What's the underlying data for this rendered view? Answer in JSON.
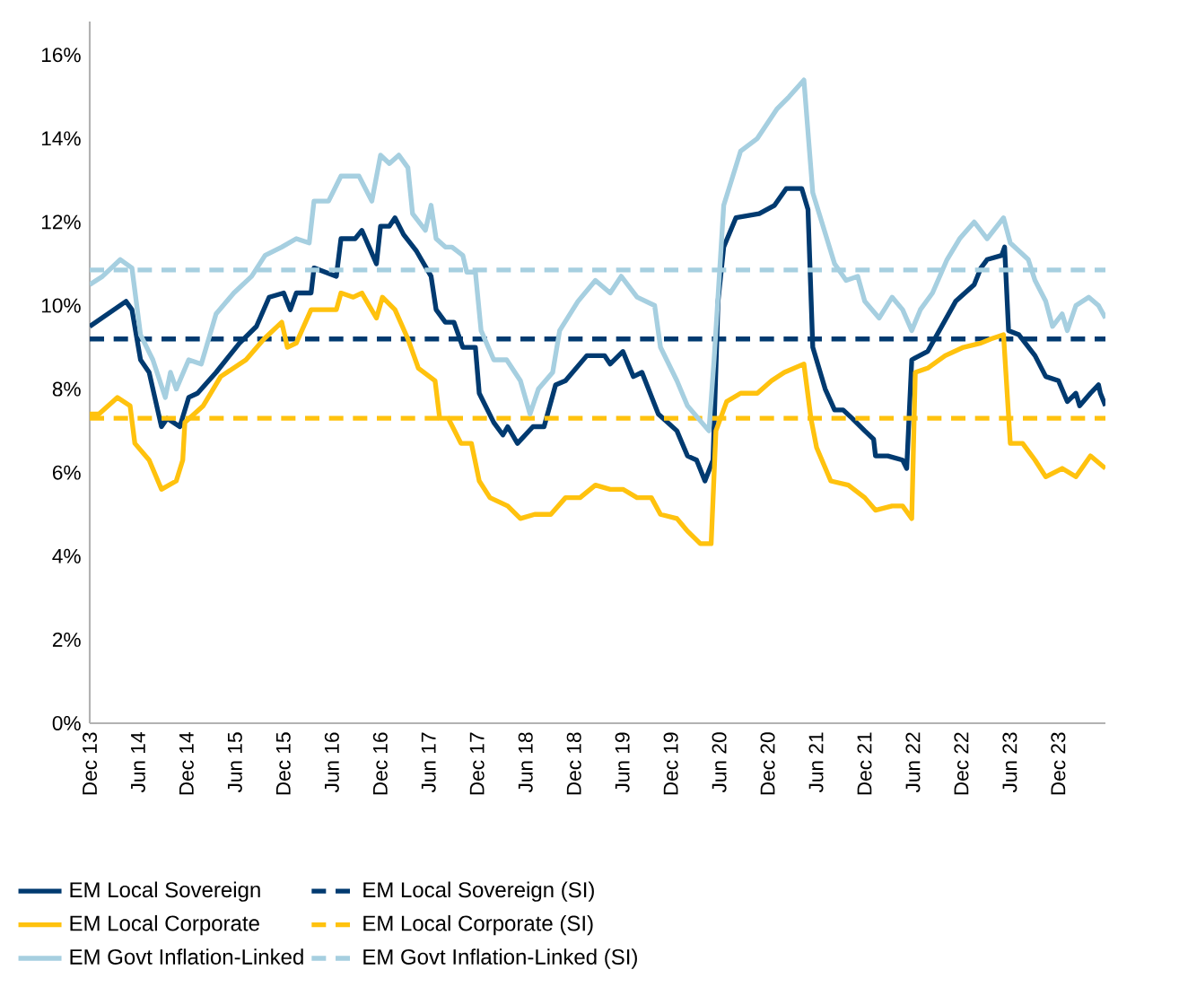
{
  "chart_data": {
    "type": "line",
    "xlim": [
      "2013-12",
      "2024-05-27"
    ],
    "ylim": [
      0,
      16.8
    ],
    "xticks": [
      {
        "value": "2013-12",
        "label": "Dec 13"
      },
      {
        "value": "2014-06",
        "label": "Jun 14"
      },
      {
        "value": "2014-12",
        "label": "Dec 14"
      },
      {
        "value": "2015-06",
        "label": "Jun 15"
      },
      {
        "value": "2015-12",
        "label": "Dec 15"
      },
      {
        "value": "2016-06",
        "label": "Jun 16"
      },
      {
        "value": "2016-12",
        "label": "Dec 16"
      },
      {
        "value": "2017-06",
        "label": "Jun 17"
      },
      {
        "value": "2017-12",
        "label": "Dec 17"
      },
      {
        "value": "2018-06",
        "label": "Jun 18"
      },
      {
        "value": "2018-12",
        "label": "Dec 18"
      },
      {
        "value": "2019-06",
        "label": "Jun 19"
      },
      {
        "value": "2019-12",
        "label": "Dec 19"
      },
      {
        "value": "2020-06",
        "label": "Jun 20"
      },
      {
        "value": "2020-12",
        "label": "Dec 20"
      },
      {
        "value": "2021-06",
        "label": "Jun 21"
      },
      {
        "value": "2021-12",
        "label": "Dec 21"
      },
      {
        "value": "2022-06",
        "label": "Jun 22"
      },
      {
        "value": "2022-12",
        "label": "Dec 22"
      },
      {
        "value": "2023-06",
        "label": "Jun 23"
      },
      {
        "value": "2023-12",
        "label": "Dec 23"
      }
    ],
    "yticks": [
      {
        "value": 0,
        "label": "0%"
      },
      {
        "value": 2,
        "label": "2%"
      },
      {
        "value": 4,
        "label": "4%"
      },
      {
        "value": 6,
        "label": "6%"
      },
      {
        "value": 8,
        "label": "8%"
      },
      {
        "value": 10,
        "label": "10%"
      },
      {
        "value": 12,
        "label": "12%"
      },
      {
        "value": 14,
        "label": "14%"
      },
      {
        "value": 16,
        "label": "16%"
      }
    ],
    "grid": false,
    "legend": "bottom",
    "series": [
      {
        "name": "EM Local Sovereign",
        "color": "#003a70",
        "line_style": "solid",
        "x": [
          "2013-12",
          "2014-04-16",
          "2014-05-08",
          "2014-06-10",
          "2014-07-12",
          "2014-08-28",
          "2014-09-19",
          "2014-11-06",
          "2014-12-09",
          "2015-01-12",
          "2015-03-21",
          "2015-06-18",
          "2015-08-21",
          "2015-10-08",
          "2015-12-02",
          "2015-12-27",
          "2016-01-19",
          "2016-03-14",
          "2016-03-25",
          "2016-06-18",
          "2016-07-05",
          "2016-08-28",
          "2016-09-23",
          "2016-11-17",
          "2016-12-02",
          "2017-01-05",
          "2017-01-26",
          "2017-02-28",
          "2017-04-16",
          "2017-06-10",
          "2017-06-29",
          "2017-08-03",
          "2017-09-05",
          "2017-10-08",
          "2017-11-25",
          "2017-12-09",
          "2018-02-03",
          "2018-03-07",
          "2018-03-25",
          "2018-05-01",
          "2018-06-29",
          "2018-08-10",
          "2018-09-23",
          "2018-10-30",
          "2019-01-19",
          "2019-03-25",
          "2019-04-16",
          "2019-06-03",
          "2019-07-12",
          "2019-08-14",
          "2019-10-15",
          "2019-12-24",
          "2020-02-03",
          "2020-03-07",
          "2020-04-08",
          "2020-05-08",
          "2020-05-27",
          "2020-06-18",
          "2020-08-03",
          "2020-10-30",
          "2020-12-27",
          "2021-02-10",
          "2021-04-08",
          "2021-05-01",
          "2021-05-19",
          "2021-07-05",
          "2021-08-10",
          "2021-09-12",
          "2021-10-15",
          "2021-12-02",
          "2022-01-05",
          "2022-01-12",
          "2022-02-28",
          "2022-04-23",
          "2022-05-08",
          "2022-05-27",
          "2022-07-26",
          "2022-11-10",
          "2023-01-19",
          "2023-02-14",
          "2023-03-07",
          "2023-05-01",
          "2023-05-12",
          "2023-05-27",
          "2023-07-05",
          "2023-09-05",
          "2023-10-15",
          "2023-12-02",
          "2024-01-05",
          "2024-02-07",
          "2024-02-21",
          "2024-04-01",
          "2024-05-01",
          "2024-05-08",
          "2024-05-27"
        ],
        "values": [
          9.5,
          10.1,
          9.9,
          8.7,
          8.4,
          7.1,
          7.3,
          7.1,
          7.8,
          7.9,
          8.4,
          9.1,
          9.5,
          10.2,
          10.3,
          9.9,
          10.3,
          10.3,
          10.9,
          10.7,
          11.6,
          11.6,
          11.8,
          11.0,
          11.9,
          11.9,
          12.1,
          11.7,
          11.3,
          10.7,
          9.9,
          9.6,
          9.6,
          9.0,
          9.0,
          7.9,
          7.2,
          6.9,
          7.1,
          6.7,
          7.1,
          7.1,
          8.1,
          8.2,
          8.8,
          8.8,
          8.6,
          8.9,
          8.3,
          8.4,
          7.4,
          7.0,
          6.4,
          6.3,
          5.8,
          6.3,
          10.1,
          11.4,
          12.1,
          12.2,
          12.4,
          12.8,
          12.8,
          12.3,
          9.0,
          8.0,
          7.5,
          7.5,
          7.3,
          7.0,
          6.8,
          6.4,
          6.4,
          6.3,
          6.1,
          8.7,
          8.9,
          10.1,
          10.5,
          10.9,
          11.1,
          11.2,
          11.4,
          9.4,
          9.3,
          8.8,
          8.3,
          8.2,
          7.7,
          7.9,
          7.6,
          7.9,
          8.1,
          7.9,
          7.6
        ]
      },
      {
        "name": "EM Local Sovereign (SI)",
        "color": "#003a70",
        "line_style": "dashed",
        "x": [
          "2013-12",
          "2024-05-27"
        ],
        "values": [
          9.2,
          9.2
        ]
      },
      {
        "name": "EM Local Corporate",
        "color": "#ffc20e",
        "line_style": "solid",
        "x": [
          "2013-12",
          "2014-01-05",
          "2014-03-14",
          "2014-05-01",
          "2014-05-19",
          "2014-07-12",
          "2014-08-28",
          "2014-10-23",
          "2014-11-17",
          "2014-11-25",
          "2015-02-03",
          "2015-04-08",
          "2015-07-12",
          "2015-09-19",
          "2015-11-25",
          "2015-12-16",
          "2016-01-19",
          "2016-03-14",
          "2016-06-18",
          "2016-07-05",
          "2016-08-21",
          "2016-09-23",
          "2016-11-17",
          "2016-12-09",
          "2017-01-26",
          "2017-03-14",
          "2017-04-23",
          "2017-06-25",
          "2017-07-12",
          "2017-08-14",
          "2017-10-01",
          "2017-11-10",
          "2017-12-09",
          "2018-01-19",
          "2018-03-25",
          "2018-05-12",
          "2018-07-05",
          "2018-09-05",
          "2018-10-30",
          "2018-12-24",
          "2019-02-21",
          "2019-04-16",
          "2019-06-03",
          "2019-07-26",
          "2019-09-19",
          "2019-10-23",
          "2019-12-24",
          "2020-02-03",
          "2020-03-21",
          "2020-05-01",
          "2020-05-19",
          "2020-06-29",
          "2020-08-21",
          "2020-10-23",
          "2020-12-16",
          "2021-02-03",
          "2021-04-16",
          "2021-05-12",
          "2021-06-03",
          "2021-07-26",
          "2021-10-01",
          "2021-12-02",
          "2022-01-12",
          "2022-03-14",
          "2022-04-23",
          "2022-05-27",
          "2022-06-10",
          "2022-07-26",
          "2022-10-01",
          "2022-12-09",
          "2023-02-14",
          "2023-03-21",
          "2023-05-08",
          "2023-06-03",
          "2023-07-19",
          "2023-09-05",
          "2023-10-15",
          "2023-12-16",
          "2024-02-07",
          "2024-04-01",
          "2024-05-27"
        ],
        "values": [
          7.4,
          7.4,
          7.8,
          7.6,
          6.7,
          6.3,
          5.6,
          5.8,
          6.3,
          7.2,
          7.6,
          8.3,
          8.7,
          9.2,
          9.6,
          9.0,
          9.1,
          9.9,
          9.9,
          10.3,
          10.2,
          10.3,
          9.7,
          10.2,
          9.9,
          9.2,
          8.5,
          8.2,
          7.3,
          7.3,
          6.7,
          6.7,
          5.8,
          5.4,
          5.2,
          4.9,
          5.0,
          5.0,
          5.4,
          5.4,
          5.7,
          5.6,
          5.6,
          5.4,
          5.4,
          5.0,
          4.9,
          4.6,
          4.3,
          4.3,
          7.0,
          7.7,
          7.9,
          7.9,
          8.2,
          8.4,
          8.6,
          7.3,
          6.6,
          5.8,
          5.7,
          5.4,
          5.1,
          5.2,
          5.2,
          4.9,
          8.4,
          8.5,
          8.8,
          9.0,
          9.1,
          9.2,
          9.3,
          6.7,
          6.7,
          6.3,
          5.9,
          6.1,
          5.9,
          6.4,
          6.1
        ]
      },
      {
        "name": "EM Local Corporate (SI)",
        "color": "#ffc20e",
        "line_style": "dashed",
        "x": [
          "2013-12",
          "2024-05-27"
        ],
        "values": [
          7.3,
          7.3
        ]
      },
      {
        "name": "EM Govt Inflation-Linked",
        "color": "#a6cfe0",
        "line_style": "solid",
        "x": [
          "2013-12",
          "2014-01-19",
          "2014-03-25",
          "2014-05-08",
          "2014-06-10",
          "2014-07-26",
          "2014-09-12",
          "2014-10-01",
          "2014-10-23",
          "2014-12-09",
          "2015-01-26",
          "2015-03-21",
          "2015-05-27",
          "2015-08-03",
          "2015-09-23",
          "2015-11-25",
          "2016-01-19",
          "2016-03-07",
          "2016-03-25",
          "2016-05-19",
          "2016-07-05",
          "2016-09-12",
          "2016-10-30",
          "2016-12-02",
          "2017-01-05",
          "2017-02-10",
          "2017-03-14",
          "2017-04-01",
          "2017-05-19",
          "2017-06-10",
          "2017-06-29",
          "2017-08-03",
          "2017-08-28",
          "2017-10-08",
          "2017-10-23",
          "2017-11-25",
          "2017-12-16",
          "2018-02-03",
          "2018-03-21",
          "2018-05-12",
          "2018-06-18",
          "2018-07-19",
          "2018-09-12",
          "2018-10-08",
          "2018-12-16",
          "2019-02-21",
          "2019-04-16",
          "2019-05-27",
          "2019-07-26",
          "2019-10-01",
          "2019-10-23",
          "2019-12-24",
          "2020-02-03",
          "2020-04-23",
          "2020-05-12",
          "2020-06-18",
          "2020-08-21",
          "2020-10-23",
          "2021-01-05",
          "2021-02-21",
          "2021-04-16",
          "2021-05-19",
          "2021-08-10",
          "2021-09-23",
          "2021-11-06",
          "2021-12-02",
          "2022-01-26",
          "2022-03-14",
          "2022-04-23",
          "2022-05-27",
          "2022-06-29",
          "2022-08-14",
          "2022-10-08",
          "2022-11-25",
          "2023-01-19",
          "2023-03-07",
          "2023-05-08",
          "2023-06-03",
          "2023-08-10",
          "2023-09-05",
          "2023-10-15",
          "2023-11-10",
          "2023-12-16",
          "2024-01-05",
          "2024-02-07",
          "2024-03-25",
          "2024-05-01",
          "2024-05-27"
        ],
        "values": [
          10.5,
          10.7,
          11.1,
          10.9,
          9.3,
          8.7,
          7.8,
          8.4,
          8.0,
          8.7,
          8.6,
          9.8,
          10.3,
          10.7,
          11.2,
          11.4,
          11.6,
          11.5,
          12.5,
          12.5,
          13.1,
          13.1,
          12.5,
          13.6,
          13.4,
          13.6,
          13.3,
          12.2,
          11.8,
          12.4,
          11.6,
          11.4,
          11.4,
          11.2,
          10.8,
          10.8,
          9.4,
          8.7,
          8.7,
          8.2,
          7.4,
          8.0,
          8.4,
          9.4,
          10.1,
          10.6,
          10.3,
          10.7,
          10.2,
          10.0,
          9.0,
          8.2,
          7.6,
          7.0,
          8.7,
          12.4,
          13.7,
          14.0,
          14.7,
          15.0,
          15.4,
          12.7,
          11.0,
          10.6,
          10.7,
          10.1,
          9.7,
          10.2,
          9.9,
          9.4,
          9.9,
          10.3,
          11.1,
          11.6,
          12.0,
          11.6,
          12.1,
          11.5,
          11.1,
          10.6,
          10.1,
          9.5,
          9.8,
          9.4,
          10.0,
          10.2,
          10.0,
          9.7
        ]
      },
      {
        "name": "EM Govt Inflation-Linked (SI)",
        "color": "#a6cfe0",
        "line_style": "dashed",
        "x": [
          "2013-12",
          "2024-05-27"
        ],
        "values": [
          10.85,
          10.85
        ]
      }
    ]
  }
}
